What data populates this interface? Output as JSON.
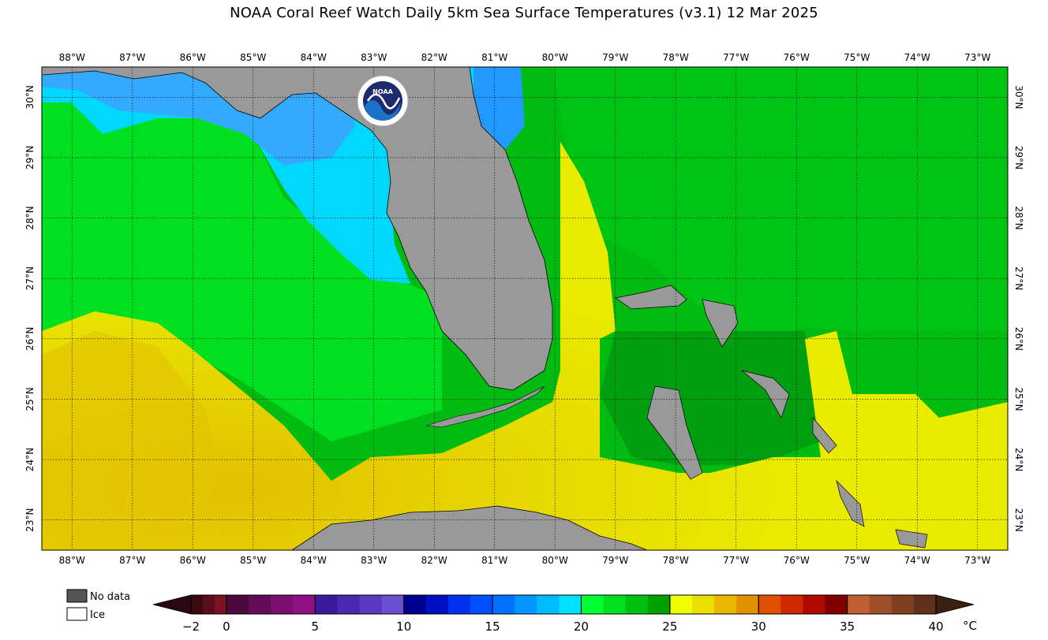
{
  "title": "NOAA Coral Reef Watch Daily 5km Sea Surface Temperatures  (v3.1)   12 Mar 2025",
  "map": {
    "extent": {
      "lon_min": -88.5,
      "lon_max": -72.5,
      "lat_min": 22.5,
      "lat_max": 30.5
    },
    "lon_labels": [
      "88°W",
      "87°W",
      "86°W",
      "85°W",
      "84°W",
      "83°W",
      "82°W",
      "81°W",
      "80°W",
      "79°W",
      "78°W",
      "77°W",
      "76°W",
      "75°W",
      "74°W",
      "73°W"
    ],
    "lon_values": [
      -88,
      -87,
      -86,
      -85,
      -84,
      -83,
      -82,
      -81,
      -80,
      -79,
      -78,
      -77,
      -76,
      -75,
      -74,
      -73
    ],
    "lat_labels": [
      "30°N",
      "29°N",
      "28°N",
      "27°N",
      "26°N",
      "25°N",
      "24°N",
      "23°N"
    ],
    "lat_values": [
      30,
      29,
      28,
      27,
      26,
      25,
      24,
      23
    ],
    "land_color": "#999999",
    "grid": "dotted"
  },
  "logo": {
    "text": "NOAA"
  },
  "legend": {
    "no_data_label": "No data",
    "no_data_color": "#555555",
    "ice_label": "Ice",
    "ice_color": "#ffffff"
  },
  "colorbar": {
    "unit": "°C",
    "tick_labels": [
      "−2",
      "0",
      "5",
      "10",
      "15",
      "20",
      "25",
      "30",
      "35",
      "40"
    ],
    "tick_values": [
      -2,
      0,
      5,
      10,
      15,
      20,
      25,
      30,
      35,
      40
    ],
    "range": [
      -2,
      40
    ],
    "segments": [
      {
        "from": -2,
        "to": 0,
        "colors": [
          "#3a0a12",
          "#5a0d1a",
          "#7a1222"
        ]
      },
      {
        "from": 0,
        "to": 5,
        "colors": [
          "#4a0a3a",
          "#620d55",
          "#7a0f70",
          "#900f85"
        ]
      },
      {
        "from": 5,
        "to": 10,
        "colors": [
          "#3a1a9a",
          "#4a28b0",
          "#5a38c0",
          "#6a50d0"
        ]
      },
      {
        "from": 10,
        "to": 15,
        "colors": [
          "#000090",
          "#0010c0",
          "#0030f0",
          "#0050ff"
        ]
      },
      {
        "from": 15,
        "to": 20,
        "colors": [
          "#0070ff",
          "#0095ff",
          "#00bbff",
          "#00e0ff"
        ]
      },
      {
        "from": 20,
        "to": 25,
        "colors": [
          "#00ff30",
          "#00e020",
          "#00c010",
          "#00a000"
        ]
      },
      {
        "from": 25,
        "to": 30,
        "colors": [
          "#f0ff00",
          "#e8e000",
          "#e8b800",
          "#e09000"
        ]
      },
      {
        "from": 30,
        "to": 35,
        "colors": [
          "#e05000",
          "#d02800",
          "#b00a00",
          "#800000"
        ]
      },
      {
        "from": 35,
        "to": 40,
        "colors": [
          "#c06030",
          "#a04e28",
          "#804020",
          "#603018"
        ]
      }
    ],
    "extend_low_color": "#2a0810",
    "extend_high_color": "#3a2010"
  }
}
